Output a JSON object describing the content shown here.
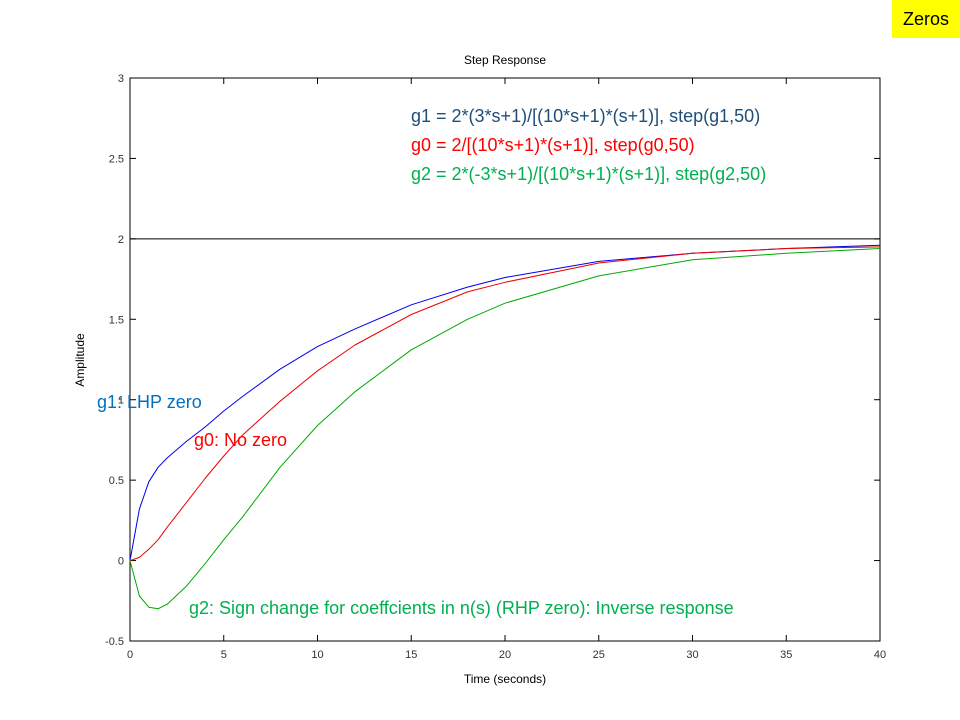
{
  "corner_tag": "Zeros",
  "colors": {
    "g1": "#0000ee",
    "g0": "#ee0000",
    "g2": "#00aa00",
    "formula_g1": "#1f4e79",
    "annotation_g1": "#0070c0",
    "formula_g0": "#ff0000",
    "formula_g2": "#00b050",
    "reference": "#000000",
    "corner_tag": "#ffff00"
  },
  "formulas": [
    {
      "text": "g1 = 2*(3*s+1)/[(10*s+1)*(s+1)],  step(g1,50)",
      "color_key": "formula_g1"
    },
    {
      "text": "g0 = 2/[(10*s+1)*(s+1)],  step(g0,50)",
      "color_key": "formula_g0"
    },
    {
      "text": "g2 = 2*(-3*s+1)/[(10*s+1)*(s+1)],  step(g2,50)",
      "color_key": "formula_g2"
    }
  ],
  "annotations": {
    "g1": "g1: LHP zero",
    "g0": "g0: No zero",
    "g2": "g2: Sign change for coeffcients in n(s) (RHP zero): Inverse response"
  },
  "chart_data": {
    "type": "line",
    "title": "Step Response",
    "xlabel": "Time (seconds)",
    "ylabel": "Amplitude",
    "xlim": [
      0,
      40
    ],
    "ylim": [
      -0.5,
      3
    ],
    "xticks": [
      0,
      5,
      10,
      15,
      20,
      25,
      30,
      35,
      40
    ],
    "yticks": [
      -0.5,
      0,
      0.5,
      1,
      1.5,
      2,
      2.5,
      3
    ],
    "ytick_labels": [
      "-0.5",
      "0",
      "0.5",
      "1",
      "1.5",
      "2",
      "2.5",
      "3"
    ],
    "grid": false,
    "reference_line": 2,
    "x": [
      0,
      0.5,
      1,
      1.5,
      2,
      3,
      4,
      5,
      6,
      8,
      10,
      12,
      15,
      18,
      20,
      25,
      30,
      35,
      40
    ],
    "series": [
      {
        "name": "g1",
        "color_key": "g1",
        "values": [
          0,
          0.32,
          0.49,
          0.58,
          0.64,
          0.74,
          0.83,
          0.93,
          1.02,
          1.19,
          1.33,
          1.44,
          1.59,
          1.7,
          1.76,
          1.86,
          1.91,
          1.94,
          1.96
        ]
      },
      {
        "name": "g0",
        "color_key": "g0",
        "values": [
          0,
          0.02,
          0.07,
          0.13,
          0.21,
          0.36,
          0.51,
          0.65,
          0.78,
          0.99,
          1.18,
          1.34,
          1.53,
          1.67,
          1.73,
          1.85,
          1.91,
          1.94,
          1.95
        ]
      },
      {
        "name": "g2",
        "color_key": "g2",
        "values": [
          0,
          -0.22,
          -0.29,
          -0.3,
          -0.27,
          -0.16,
          -0.02,
          0.13,
          0.27,
          0.58,
          0.84,
          1.05,
          1.31,
          1.5,
          1.6,
          1.77,
          1.87,
          1.91,
          1.94
        ]
      }
    ]
  }
}
